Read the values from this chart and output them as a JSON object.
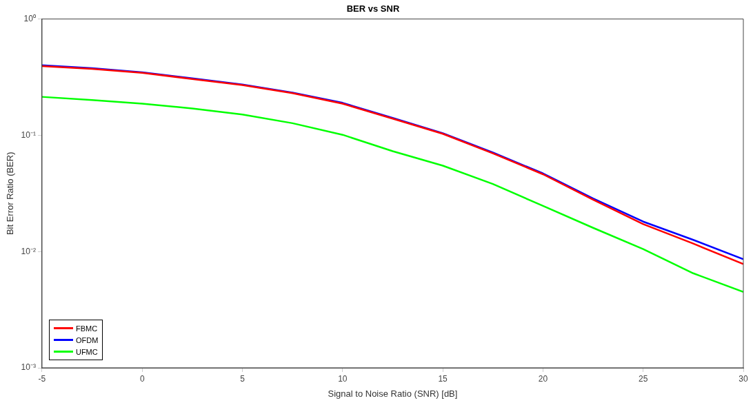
{
  "chart_data": {
    "type": "line",
    "title": "BER vs SNR",
    "xlabel": "Signal to Noise Ratio (SNR) [dB]",
    "ylabel": "Bit Error Ratio (BER)",
    "x": [
      -5,
      -2.5,
      0,
      2.5,
      5,
      7.5,
      10,
      12.5,
      15,
      17.5,
      20,
      22.5,
      25,
      27.5,
      30
    ],
    "series": [
      {
        "name": "FBMC",
        "color": "#ff0000",
        "values": [
          0.394,
          0.373,
          0.344,
          0.305,
          0.27,
          0.23,
          0.187,
          0.139,
          0.103,
          0.07,
          0.0462,
          0.0279,
          0.0172,
          0.0117,
          0.0078
        ]
      },
      {
        "name": "OFDM",
        "color": "#0000ff",
        "values": [
          0.4,
          0.378,
          0.348,
          0.309,
          0.273,
          0.233,
          0.19,
          0.141,
          0.104,
          0.071,
          0.047,
          0.0286,
          0.0181,
          0.0126,
          0.0086
        ]
      },
      {
        "name": "UFMC",
        "color": "#00ff00",
        "values": [
          0.214,
          0.201,
          0.187,
          0.17,
          0.151,
          0.127,
          0.101,
          0.073,
          0.0548,
          0.0381,
          0.0247,
          0.016,
          0.0105,
          0.0065,
          0.0045
        ]
      }
    ],
    "xlim": [
      -5,
      30
    ],
    "xticks": [
      -5,
      0,
      5,
      10,
      15,
      20,
      25,
      30
    ],
    "ylim": [
      0.001,
      1
    ],
    "yticks": [
      {
        "value": 0.001,
        "label": "10⁻³"
      },
      {
        "value": 0.01,
        "label": "10⁻²"
      },
      {
        "value": 0.1,
        "label": "10⁻¹"
      },
      {
        "value": 1,
        "label": "10⁰"
      }
    ],
    "log": "y",
    "grid": false,
    "legend": "bottom left",
    "marker": "none",
    "line_style": "solid"
  }
}
